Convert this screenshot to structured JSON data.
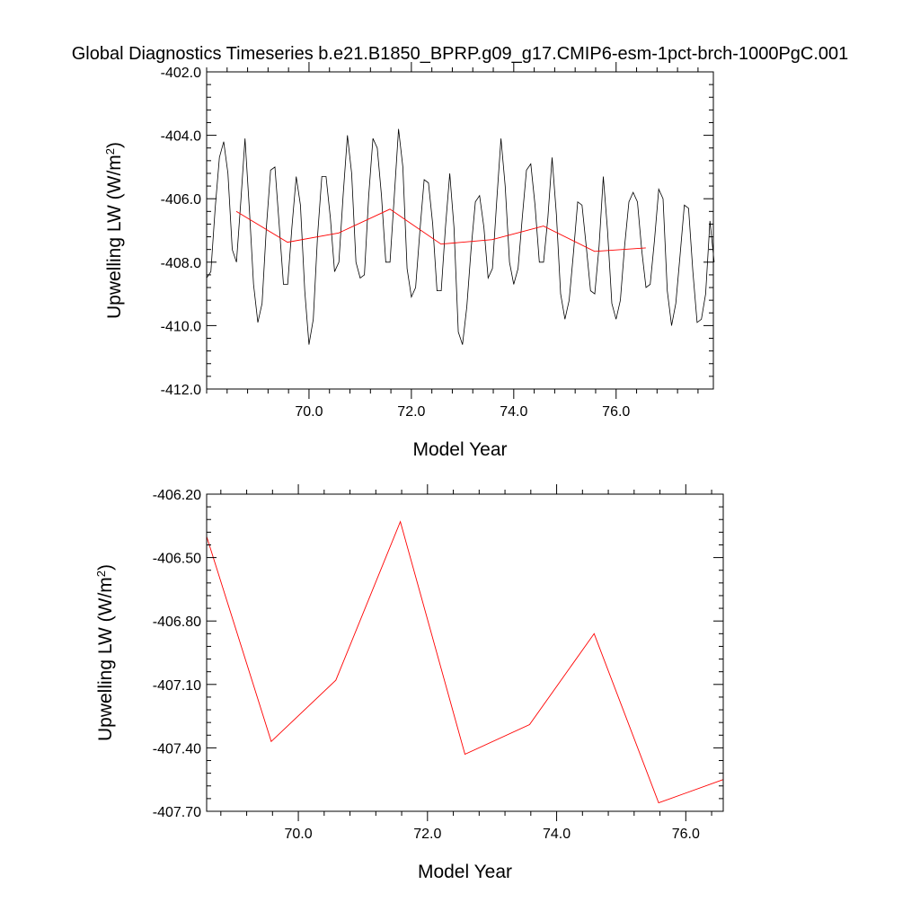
{
  "title": "Global Diagnostics Timeseries b.e21.B1850_BPRP.g09_g17.CMIP6-esm-1pct-brch-1000PgC.001",
  "colors": {
    "monthly": "#000000",
    "annual": "#ff0000",
    "axes": "#000000"
  },
  "chart_data": [
    {
      "type": "line",
      "xlabel": "Model Year",
      "ylabel_main": "Upwelling LW (W/m",
      "ylabel_sup": "2",
      "ylabel_close": ")",
      "xlim": [
        68.0,
        77.9
      ],
      "ylim": [
        -412.0,
        -402.0
      ],
      "xticks": [
        70.0,
        72.0,
        74.0,
        76.0
      ],
      "xtick_labels": [
        "70.0",
        "72.0",
        "74.0",
        "76.0"
      ],
      "yticks": [
        -412.0,
        -410.0,
        -408.0,
        -406.0,
        -404.0,
        -402.0
      ],
      "ytick_labels": [
        "-412.0",
        "-410.0",
        "-408.0",
        "-406.0",
        "-404.0",
        "-402.0"
      ],
      "series": [
        {
          "style": "monthly",
          "x_start": 68.0,
          "x_step": 0.08333,
          "values": [
            -408.5,
            -408.3,
            -406.3,
            -404.7,
            -404.2,
            -405.2,
            -407.6,
            -408.0,
            -406.1,
            -404.1,
            -406.3,
            -408.7,
            -409.9,
            -409.3,
            -406.9,
            -405.1,
            -405.0,
            -406.8,
            -408.7,
            -408.7,
            -406.9,
            -405.3,
            -406.2,
            -408.9,
            -410.6,
            -409.8,
            -407.2,
            -405.3,
            -405.3,
            -406.6,
            -408.3,
            -408.0,
            -405.9,
            -404.0,
            -405.2,
            -408.0,
            -408.5,
            -408.4,
            -405.9,
            -404.1,
            -404.4,
            -405.9,
            -408.0,
            -408.0,
            -405.9,
            -403.8,
            -405.0,
            -408.2,
            -409.1,
            -408.8,
            -407.0,
            -405.4,
            -405.5,
            -406.8,
            -408.9,
            -408.9,
            -406.9,
            -405.2,
            -406.9,
            -410.2,
            -410.6,
            -409.4,
            -407.6,
            -406.1,
            -405.9,
            -406.9,
            -408.5,
            -408.2,
            -406.1,
            -404.1,
            -405.6,
            -408.0,
            -408.7,
            -408.2,
            -406.6,
            -405.1,
            -404.9,
            -406.2,
            -408.0,
            -408.0,
            -406.6,
            -404.7,
            -406.5,
            -409.0,
            -409.8,
            -409.2,
            -407.7,
            -406.1,
            -406.2,
            -407.5,
            -408.9,
            -409.0,
            -407.5,
            -405.3,
            -407.0,
            -409.3,
            -409.8,
            -409.2,
            -407.5,
            -406.1,
            -405.8,
            -406.1,
            -407.6,
            -408.8,
            -408.7,
            -407.3,
            -405.7,
            -406.0,
            -408.9,
            -410.0,
            -409.3,
            -407.8,
            -406.2,
            -406.3,
            -408.3,
            -409.9,
            -409.8,
            -409.0,
            -406.7,
            -408.0
          ]
        },
        {
          "style": "annual",
          "x": [
            68.58,
            69.58,
            70.58,
            71.58,
            72.58,
            73.58,
            74.58,
            75.58,
            76.58
          ],
          "values": [
            -406.4,
            -407.37,
            -407.08,
            -406.33,
            -407.43,
            -407.29,
            -406.86,
            -407.66,
            -407.55
          ]
        }
      ]
    },
    {
      "type": "line",
      "xlabel": "Model Year",
      "ylabel_main": "Upwelling LW (W/m",
      "ylabel_sup": "2",
      "ylabel_close": ")",
      "xlim": [
        68.58,
        76.58
      ],
      "ylim": [
        -407.7,
        -406.2
      ],
      "xticks": [
        70.0,
        72.0,
        74.0,
        76.0
      ],
      "xtick_labels": [
        "70.0",
        "72.0",
        "74.0",
        "76.0"
      ],
      "yticks": [
        -407.7,
        -407.4,
        -407.1,
        -406.8,
        -406.5,
        -406.2
      ],
      "ytick_labels": [
        "-407.70",
        "-407.40",
        "-407.10",
        "-406.80",
        "-406.50",
        "-406.20"
      ],
      "series": [
        {
          "style": "annual",
          "x": [
            68.58,
            69.58,
            70.58,
            71.58,
            72.58,
            73.58,
            74.58,
            75.58,
            76.58
          ],
          "values": [
            -406.4,
            -407.37,
            -407.08,
            -406.33,
            -407.43,
            -407.29,
            -406.86,
            -407.66,
            -407.55
          ]
        }
      ]
    }
  ]
}
